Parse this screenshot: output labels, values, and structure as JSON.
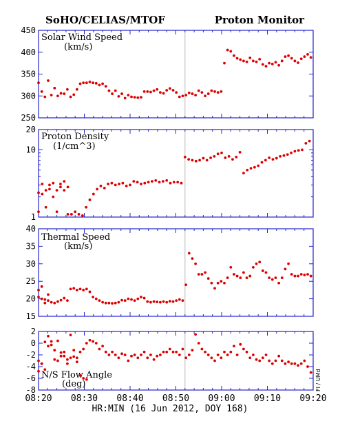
{
  "header": {
    "left_title": "SoHO/CELIAS/MTOF",
    "right_title": "Proton Monitor",
    "xlabel": "HR:MIN (16 Jun 2012, DOY 168)",
    "credit": "FI / UMd"
  },
  "colors": {
    "frame": "#2222cc",
    "points": "#dd0000",
    "event_line": "#bbbbbb"
  },
  "chart_data": [
    {
      "type": "scatter",
      "title": "Solar Wind Speed",
      "unit": "(km/s)",
      "scale": "linear",
      "ylim": [
        250,
        450
      ],
      "yticks": [
        250,
        300,
        350,
        400,
        450
      ],
      "ytick_labels": [
        "250",
        "300",
        "350",
        "400",
        "450"
      ],
      "xlim": [
        500,
        560
      ],
      "xticks": [
        500,
        510,
        520,
        530,
        540,
        550,
        560
      ],
      "xtick_labels": [
        "08:20",
        "08:30",
        "08:40",
        "08:50",
        "09:00",
        "09:10",
        "09:20"
      ],
      "event_x": 532,
      "x": [
        500.0,
        500.7,
        501.4,
        502.1,
        502.8,
        503.5,
        504.2,
        504.9,
        505.6,
        506.3,
        507.0,
        507.7,
        508.4,
        509.1,
        509.8,
        510.5,
        511.2,
        511.9,
        512.6,
        513.3,
        514.0,
        514.7,
        515.4,
        516.1,
        516.8,
        517.5,
        518.2,
        518.9,
        519.6,
        520.3,
        521.0,
        521.7,
        522.4,
        523.1,
        523.8,
        524.5,
        525.2,
        525.9,
        526.6,
        527.3,
        528.0,
        528.7,
        529.4,
        530.1,
        530.8,
        531.5,
        532.2,
        532.9,
        533.6,
        534.3,
        535.0,
        535.7,
        536.4,
        537.1,
        537.8,
        538.5,
        539.2,
        539.9,
        540.6,
        541.3,
        542.0,
        542.7,
        543.4,
        544.1,
        544.8,
        545.5,
        546.2,
        546.9,
        547.6,
        548.3,
        549.0,
        549.7,
        550.4,
        551.1,
        551.8,
        552.5,
        553.2,
        553.9,
        554.6,
        555.3,
        556.0,
        556.7,
        557.4,
        558.1,
        558.8,
        559.5
      ],
      "y": [
        330,
        310,
        298,
        335,
        302,
        318,
        300,
        306,
        305,
        315,
        298,
        303,
        315,
        328,
        330,
        330,
        332,
        330,
        329,
        325,
        328,
        322,
        312,
        305,
        312,
        299,
        305,
        295,
        302,
        298,
        297,
        296,
        297,
        310,
        310,
        309,
        312,
        315,
        308,
        306,
        313,
        317,
        313,
        308,
        298,
        300,
        302,
        307,
        305,
        302,
        312,
        308,
        300,
        305,
        312,
        310,
        308,
        310,
        375,
        405,
        402,
        392,
        386,
        383,
        380,
        378,
        387,
        380,
        378,
        384,
        372,
        368,
        375,
        373,
        377,
        370,
        380,
        390,
        392,
        386,
        380,
        376,
        385,
        390,
        395,
        388
      ],
      "y2": []
    },
    {
      "type": "scatter",
      "title": "Proton Density",
      "unit": "(1/cm^3)",
      "scale": "log",
      "ylim": [
        1,
        20
      ],
      "yticks": [
        1,
        10,
        20
      ],
      "ytick_labels": [
        "1",
        "10",
        "20"
      ],
      "minor_ticks": [
        2,
        3,
        4,
        5,
        6,
        7,
        8,
        9
      ],
      "xlim": [
        500,
        560
      ],
      "xticks": [
        500,
        510,
        520,
        530,
        540,
        550,
        560
      ],
      "event_x": 532,
      "x": [
        500.0,
        500.8,
        501.6,
        502.4,
        503.2,
        504.0,
        504.8,
        505.6,
        506.4,
        507.2,
        508.0,
        508.8,
        509.6,
        510.4,
        511.2,
        512.0,
        512.8,
        513.6,
        514.4,
        515.2,
        516.0,
        516.8,
        517.6,
        518.4,
        519.2,
        520.0,
        520.8,
        521.6,
        522.4,
        523.2,
        524.0,
        524.8,
        525.6,
        526.4,
        527.2,
        528.0,
        528.8,
        529.6,
        530.4,
        531.2,
        532.0,
        532.8,
        533.6,
        534.4,
        535.2,
        536.0,
        536.8,
        537.6,
        538.4,
        539.2,
        540.0,
        540.8,
        541.6,
        542.4,
        543.2,
        544.0,
        544.8,
        545.6,
        546.4,
        547.2,
        548.0,
        548.8,
        549.6,
        550.4,
        551.2,
        552.0,
        552.8,
        553.6,
        554.4,
        555.2,
        556.0,
        556.8,
        557.6,
        558.4,
        559.2
      ],
      "y": [
        2.3,
        3.1,
        2.5,
        3.0,
        2.0,
        1.2,
        2.8,
        2.5,
        1.1,
        1.1,
        1.2,
        1.1,
        1.05,
        1.4,
        1.8,
        2.2,
        2.6,
        2.9,
        2.7,
        3.1,
        3.2,
        3.0,
        3.1,
        3.2,
        2.9,
        3.0,
        3.4,
        3.3,
        3.1,
        3.2,
        3.3,
        3.4,
        3.5,
        3.3,
        3.4,
        3.5,
        3.2,
        3.3,
        3.3,
        3.2,
        7.8,
        7.2,
        7.0,
        6.8,
        7.0,
        7.5,
        7.0,
        7.6,
        8.0,
        8.7,
        9.0,
        7.6,
        8.0,
        7.2,
        7.8,
        9.2,
        4.5,
        5.0,
        5.3,
        5.5,
        5.8,
        6.5,
        7.0,
        7.6,
        7.2,
        7.5,
        8.0,
        8.2,
        8.5,
        9.0,
        9.5,
        9.8,
        10.0,
        12.5,
        13.5
      ],
      "y2": [
        1.2,
        2.2,
        1.4,
        2.6,
        3.2,
        2.5,
        3.1,
        3.4,
        2.8
      ]
    },
    {
      "type": "scatter",
      "title": "Thermal Speed",
      "unit": "(km/s)",
      "scale": "linear",
      "ylim": [
        15,
        40
      ],
      "yticks": [
        15,
        20,
        25,
        30,
        35,
        40
      ],
      "ytick_labels": [
        "15",
        "20",
        "25",
        "30",
        "35",
        "40"
      ],
      "xlim": [
        500,
        560
      ],
      "xticks": [
        500,
        510,
        520,
        530,
        540,
        550,
        560
      ],
      "event_x": 532,
      "x": [
        500.0,
        500.7,
        501.4,
        502.1,
        502.8,
        503.5,
        504.2,
        504.9,
        505.6,
        506.3,
        507.0,
        507.7,
        508.4,
        509.1,
        509.8,
        510.5,
        511.2,
        511.9,
        512.6,
        513.3,
        514.0,
        514.7,
        515.4,
        516.1,
        516.8,
        517.5,
        518.2,
        518.9,
        519.6,
        520.3,
        521.0,
        521.7,
        522.4,
        523.1,
        523.8,
        524.5,
        525.2,
        525.9,
        526.6,
        527.3,
        528.0,
        528.7,
        529.4,
        530.1,
        530.8,
        531.5,
        532.2,
        532.9,
        533.6,
        534.3,
        535.0,
        535.7,
        536.4,
        537.1,
        537.8,
        538.5,
        539.2,
        539.9,
        540.6,
        541.3,
        542.0,
        542.7,
        543.4,
        544.1,
        544.8,
        545.5,
        546.2,
        546.9,
        547.6,
        548.3,
        549.0,
        549.7,
        550.4,
        551.1,
        551.8,
        552.5,
        553.2,
        553.9,
        554.6,
        555.3,
        556.0,
        556.7,
        557.4,
        558.1,
        558.8,
        559.5
      ],
      "y": [
        22.5,
        20,
        18.8,
        19.5,
        19,
        18.8,
        19.2,
        19.6,
        20.2,
        19.5,
        22.8,
        23,
        22.5,
        22.8,
        22.5,
        22.8,
        22,
        20.5,
        20,
        19.5,
        19,
        18.8,
        18.8,
        18.7,
        18.8,
        19,
        19.6,
        19.5,
        20,
        19.8,
        19.5,
        20,
        20.5,
        20.2,
        19.2,
        19,
        19.2,
        19.1,
        19,
        19.2,
        19,
        19.3,
        19.2,
        19.5,
        19.8,
        19.5,
        24,
        33,
        31.5,
        30,
        27,
        27,
        27.5,
        25.8,
        24.5,
        23,
        24.5,
        25,
        24.5,
        26,
        29,
        27,
        26.5,
        26,
        27.5,
        26,
        26.5,
        29,
        30,
        30.5,
        28,
        27.5,
        26,
        25.5,
        26,
        24.5,
        26,
        28.5,
        30,
        27,
        26.5,
        26.5,
        27,
        26.8,
        27,
        26.5
      ],
      "y2": [
        20.5,
        23.5,
        19.8,
        21.2
      ]
    },
    {
      "type": "scatter",
      "title": "N/S Flow Angle",
      "unit": "(deg)",
      "scale": "linear",
      "ylim": [
        -8,
        2
      ],
      "yticks": [
        -8,
        -6,
        -4,
        -2,
        0,
        2
      ],
      "ytick_labels": [
        "-8",
        "-6",
        "-4",
        "-2",
        "0",
        "2"
      ],
      "xlim": [
        500,
        560
      ],
      "xticks": [
        500,
        510,
        520,
        530,
        540,
        550,
        560
      ],
      "event_x": 532,
      "x": [
        500.0,
        500.7,
        501.4,
        502.1,
        502.8,
        503.5,
        504.2,
        504.9,
        505.6,
        506.3,
        507.0,
        507.7,
        508.4,
        509.1,
        509.8,
        510.5,
        511.2,
        511.9,
        512.6,
        513.3,
        514.0,
        514.7,
        515.4,
        516.1,
        516.8,
        517.5,
        518.2,
        518.9,
        519.6,
        520.3,
        521.0,
        521.7,
        522.4,
        523.1,
        523.8,
        524.5,
        525.2,
        525.9,
        526.6,
        527.3,
        528.0,
        528.7,
        529.4,
        530.1,
        530.8,
        531.5,
        532.2,
        532.9,
        533.6,
        534.3,
        535.0,
        535.7,
        536.4,
        537.1,
        537.8,
        538.5,
        539.2,
        539.9,
        540.6,
        541.3,
        542.0,
        542.7,
        543.4,
        544.1,
        544.8,
        545.5,
        546.2,
        546.9,
        547.6,
        548.3,
        549.0,
        549.7,
        550.4,
        551.1,
        551.8,
        552.5,
        553.2,
        553.9,
        554.6,
        555.3,
        556.0,
        556.7,
        557.4,
        558.1,
        558.8,
        559.5
      ],
      "y": [
        -3,
        -3.5,
        -4.5,
        -0.5,
        -0.3,
        -1.2,
        -3,
        -2.2,
        -1.5,
        -2.8,
        -2.5,
        -2.3,
        -2.5,
        -1.5,
        -1,
        0,
        0.5,
        0.3,
        0,
        -1,
        -0.5,
        -1.5,
        -2,
        -1.5,
        -2,
        -2.5,
        -1.8,
        -2,
        -3,
        -2.2,
        -2,
        -2.5,
        -2,
        -1.5,
        -2.5,
        -2,
        -2.8,
        -2.2,
        -2,
        -1.5,
        -1.5,
        -1,
        -1.5,
        -1.5,
        -2,
        -1,
        -2.5,
        -2,
        -1.2,
        1.5,
        0,
        -1,
        -1.5,
        -2,
        -2.5,
        -3,
        -2,
        -2.5,
        -1.5,
        -2,
        -1.5,
        -0.5,
        -2,
        -0.2,
        -1,
        -1.5,
        -2.5,
        -2,
        -2.8,
        -3,
        -2.5,
        -2,
        -3,
        -3.5,
        -3,
        -2.2,
        -3,
        -3.5,
        -3.2,
        -3.5,
        -3.5,
        -3.8,
        -3.5,
        -3,
        -4,
        -5
      ],
      "y2": [
        -4.8,
        -3.5,
        0.2,
        1.2,
        0.3,
        -2.8,
        0.4,
        -1.6,
        -2.2,
        -3.5,
        1.4,
        -1.2,
        -3.2,
        -5.5,
        -6,
        -6.2
      ]
    }
  ]
}
